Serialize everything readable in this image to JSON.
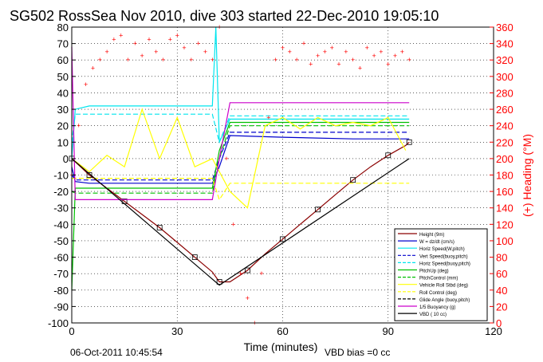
{
  "chart_data": {
    "type": "line",
    "title": "SG502 RossSea Nov 2010, dive 303 started 22-Dec-2010 19:05:10",
    "xlabel": "Time (minutes)",
    "ylabel_right": "(+) Heading (°M)",
    "xlim": [
      0,
      120
    ],
    "ylim": [
      -100,
      80
    ],
    "ylim_right": [
      0,
      360
    ],
    "x_ticks": [
      "0",
      "30",
      "60",
      "90",
      "120"
    ],
    "y_ticks": [
      "80",
      "70",
      "60",
      "50",
      "40",
      "30",
      "20",
      "10",
      "0",
      "-10",
      "-20",
      "-30",
      "-40",
      "-50",
      "-60",
      "-70",
      "-80",
      "-90",
      "-100"
    ],
    "y_right_ticks": [
      "360",
      "340",
      "320",
      "300",
      "280",
      "260",
      "240",
      "220",
      "200",
      "180",
      "160",
      "140",
      "120",
      "100",
      "80",
      "60",
      "40",
      "20",
      "0"
    ],
    "grid": true,
    "legend_position": "bottom-right",
    "footer_date": "06-Oct-2011 10:45:54",
    "footer_vbd": "VBD bias =0 cc",
    "colors": {
      "height": "#8b0000",
      "w": "#0000cd",
      "horiz_speed": "#00e5ee",
      "pitch_up": "#00c000",
      "pitch_control": "#00c000",
      "roll": "#ffff00",
      "glide": "#000000",
      "buoyancy": "#cc00cc",
      "vbd": "#000000",
      "heading": "#ff0000"
    },
    "legend": [
      "Height (9m)",
      "W = dz/dt (cm/s)",
      "Horiz Speed(W,pitch)",
      "Vert Speed(buoy,pitch)",
      "Horiz Speed(buoy,pitch)",
      "PitchUp (deg)",
      "PitchControl (mm)",
      "Vehicle Roll Stbd (deg)",
      "Roll Control (deg)",
      "Glide Angle (buoy,pitch)",
      "1/5 Buoyancy (g)",
      "VBD ( 10 cc)"
    ],
    "series": [
      {
        "name": "Height (9m)",
        "x": [
          0,
          2,
          5,
          10,
          15,
          20,
          25,
          30,
          35,
          40,
          42,
          45,
          50,
          55,
          60,
          65,
          70,
          75,
          80,
          85,
          90,
          95,
          96
        ],
        "values": [
          0,
          -4,
          -10,
          -18,
          -26,
          -34,
          -42,
          -51,
          -60,
          -69,
          -75,
          -75,
          -68,
          -58,
          -49,
          -40,
          -31,
          -22,
          -13,
          -5,
          2,
          8,
          10
        ]
      },
      {
        "name": "W = dz/dt (cm/s)",
        "x": [
          0,
          1,
          5,
          20,
          40,
          42,
          45,
          60,
          80,
          96
        ],
        "values": [
          -5,
          -14,
          -15,
          -15,
          -15,
          -5,
          14,
          13,
          12,
          12
        ]
      },
      {
        "name": "Horiz Speed(W,pitch)",
        "x": [
          0,
          1,
          5,
          20,
          40,
          41,
          42,
          45,
          60,
          80,
          96
        ],
        "values": [
          0,
          30,
          32,
          32,
          32,
          80,
          10,
          24,
          24,
          24,
          24
        ]
      },
      {
        "name": "Vert Speed(buoy,pitch)",
        "x": [
          0,
          1,
          40,
          42,
          45,
          96
        ],
        "values": [
          -10,
          -13,
          -13,
          0,
          16,
          16
        ]
      },
      {
        "name": "Horiz Speed(buoy,pitch)",
        "x": [
          0,
          1,
          40,
          42,
          45,
          96
        ],
        "values": [
          10,
          27,
          27,
          10,
          26,
          26
        ]
      },
      {
        "name": "PitchUp (deg)",
        "x": [
          0,
          1,
          40,
          42,
          45,
          96
        ],
        "values": [
          -80,
          -18,
          -18,
          5,
          22,
          22
        ]
      },
      {
        "name": "PitchControl (mm)",
        "x": [
          0,
          1,
          40,
          42,
          45,
          96
        ],
        "values": [
          -20,
          -21,
          -21,
          0,
          20,
          20
        ]
      },
      {
        "name": "Vehicle Roll Stbd (deg)",
        "x": [
          0,
          5,
          10,
          15,
          20,
          25,
          30,
          35,
          40,
          45,
          50,
          55,
          60,
          65,
          70,
          75,
          80,
          85,
          90,
          95
        ],
        "values": [
          0,
          -8,
          2,
          -5,
          30,
          0,
          25,
          -5,
          0,
          -20,
          -30,
          20,
          25,
          18,
          25,
          20,
          22,
          20,
          25,
          5
        ]
      },
      {
        "name": "Roll Control (deg)",
        "x": [
          0,
          40,
          42,
          45,
          96
        ],
        "values": [
          -12,
          -12,
          -25,
          -15,
          -15
        ]
      },
      {
        "name": "1/5 Buoyancy (g)",
        "x": [
          0,
          1,
          40,
          42,
          45,
          96
        ],
        "values": [
          68,
          -25,
          -25,
          0,
          34,
          34
        ]
      },
      {
        "name": "VBD ( 10 cc)",
        "x": [
          0,
          42,
          96
        ],
        "values": [
          0,
          -77,
          0
        ]
      },
      {
        "name": "(+) Heading (°M)",
        "axis": "right",
        "x": [
          0,
          2,
          4,
          6,
          8,
          10,
          12,
          14,
          16,
          18,
          20,
          22,
          24,
          26,
          28,
          30,
          32,
          34,
          36,
          38,
          40,
          42,
          44,
          46,
          48,
          50,
          52,
          54,
          56,
          58,
          60,
          62,
          64,
          66,
          68,
          70,
          72,
          74,
          76,
          78,
          80,
          82,
          84,
          86,
          88,
          90,
          92,
          94,
          96
        ],
        "values": [
          180,
          240,
          290,
          310,
          320,
          330,
          345,
          350,
          320,
          340,
          325,
          345,
          330,
          320,
          345,
          350,
          335,
          320,
          340,
          330,
          320,
          360,
          200,
          120,
          60,
          30,
          0,
          60,
          250,
          320,
          335,
          330,
          320,
          340,
          315,
          325,
          330,
          335,
          315,
          330,
          320,
          310,
          335,
          325,
          330,
          315,
          325,
          330,
          320
        ]
      }
    ]
  }
}
